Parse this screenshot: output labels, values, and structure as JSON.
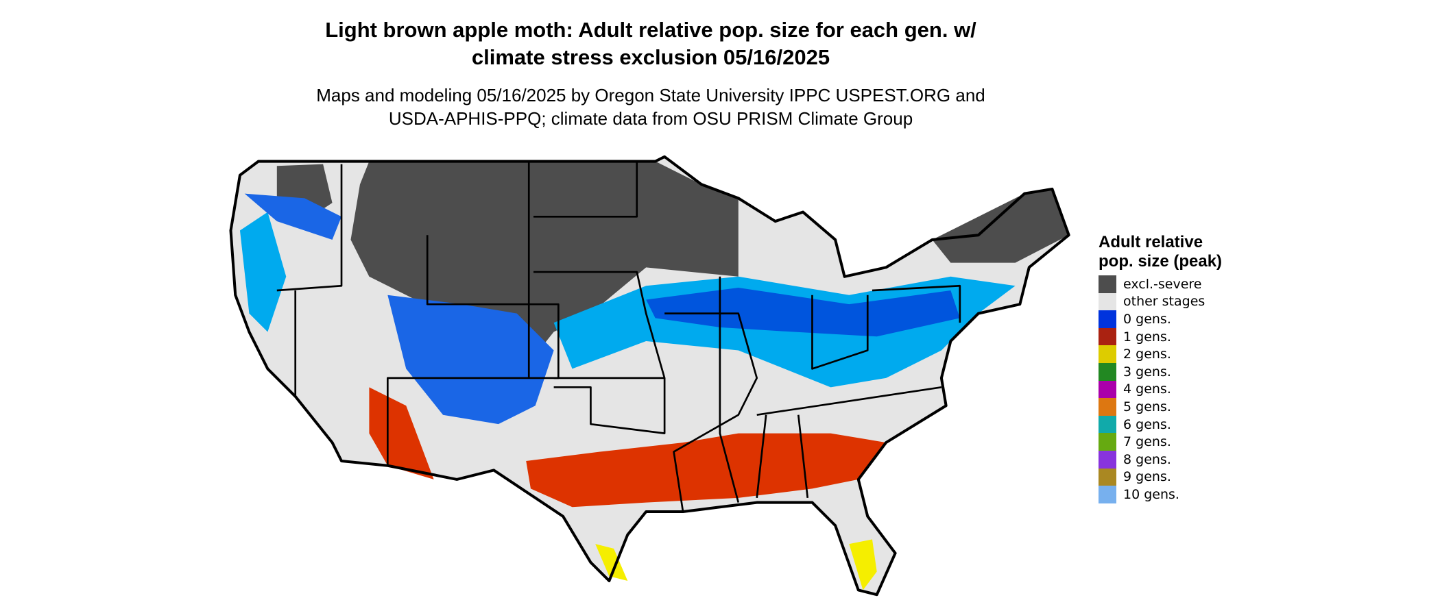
{
  "title": "Light brown apple moth: Adult relative pop. size for each gen. w/ climate stress exclusion 05/16/2025",
  "subtitle": "Maps and modeling 05/16/2025 by Oregon State University IPPC USPEST.ORG and USDA-APHIS-PPQ; climate data from OSU PRISM Climate Group",
  "legend": {
    "title": "Adult relative pop. size (peak)",
    "items": [
      {
        "label": "excl.-severe",
        "color": "#4d4d4d"
      },
      {
        "label": "other stages",
        "color": "#e5e5e5"
      },
      {
        "label": "0 gens.",
        "color": "#0033dd"
      },
      {
        "label": "1 gens.",
        "color": "#aa2211"
      },
      {
        "label": "2 gens.",
        "color": "#ddcc00"
      },
      {
        "label": "3 gens.",
        "color": "#228822"
      },
      {
        "label": "4 gens.",
        "color": "#aa00aa"
      },
      {
        "label": "5 gens.",
        "color": "#dd7711"
      },
      {
        "label": "6 gens.",
        "color": "#11aaaa"
      },
      {
        "label": "7 gens.",
        "color": "#66aa11"
      },
      {
        "label": "8 gens.",
        "color": "#8833dd"
      },
      {
        "label": "9 gens.",
        "color": "#aa8822"
      },
      {
        "label": "10 gens.",
        "color": "#77b0ee"
      }
    ]
  }
}
